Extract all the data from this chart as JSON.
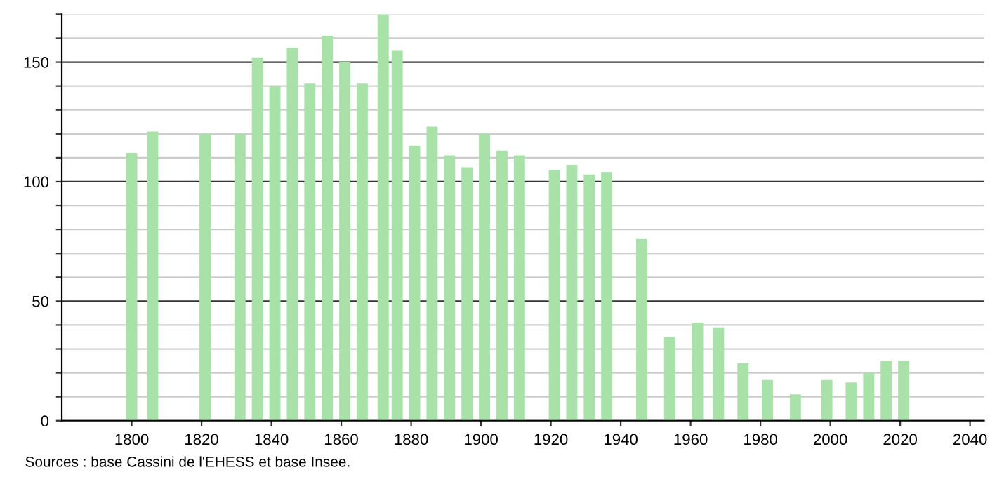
{
  "chart_data": {
    "type": "bar",
    "x": [
      1800,
      1806,
      1821,
      1831,
      1836,
      1841,
      1846,
      1851,
      1856,
      1861,
      1866,
      1872,
      1876,
      1881,
      1886,
      1891,
      1896,
      1901,
      1906,
      1911,
      1921,
      1926,
      1931,
      1936,
      1946,
      1954,
      1962,
      1968,
      1975,
      1982,
      1990,
      1999,
      2006,
      2011,
      2016,
      2021
    ],
    "values": [
      112,
      121,
      120,
      120,
      152,
      140,
      156,
      141,
      161,
      150,
      141,
      170,
      155,
      115,
      123,
      111,
      106,
      120,
      113,
      111,
      105,
      107,
      103,
      104,
      76,
      35,
      41,
      39,
      24,
      17,
      11,
      17,
      16,
      20,
      25,
      25
    ],
    "color": "#a8e2a8",
    "xlim": [
      1780,
      2044
    ],
    "xticks": [
      1800,
      1820,
      1840,
      1860,
      1880,
      1900,
      1920,
      1940,
      1960,
      1980,
      2000,
      2020,
      2040
    ],
    "ylim": [
      0,
      170
    ],
    "yticks": [
      0,
      {
        "value": 10,
        "label": null
      },
      {
        "value": 20,
        "label": null
      },
      {
        "value": 30,
        "label": null
      },
      {
        "value": 40,
        "label": null
      },
      50,
      {
        "value": 60,
        "label": null
      },
      {
        "value": 70,
        "label": null
      },
      {
        "value": 80,
        "label": null
      },
      {
        "value": 90,
        "label": null
      },
      100,
      {
        "value": 110,
        "label": null
      },
      {
        "value": 120,
        "label": null
      },
      {
        "value": 130,
        "label": null
      },
      {
        "value": 140,
        "label": null
      },
      150,
      {
        "value": 160,
        "label": null
      },
      {
        "value": 170,
        "label": null
      }
    ],
    "grid": "y",
    "annotations": [
      "Sources : base Cassini de l'EHESS et base Insee."
    ]
  }
}
